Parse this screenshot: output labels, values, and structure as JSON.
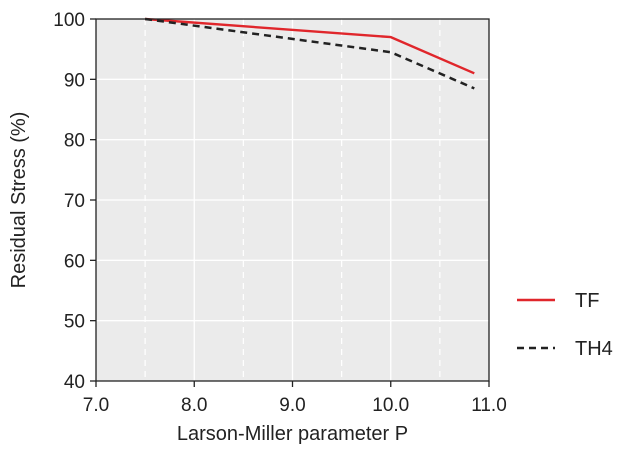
{
  "chart_data": {
    "type": "line",
    "title": "",
    "xlabel": "Larson-Miller parameter P",
    "ylabel": "Residual Stress (%)",
    "xlim": [
      7.0,
      11.0
    ],
    "ylim": [
      40,
      100
    ],
    "xticks": [
      "7.0",
      "8.0",
      "9.0",
      "10.0",
      "11.0"
    ],
    "yticks": [
      "40",
      "50",
      "60",
      "70",
      "80",
      "90",
      "100"
    ],
    "grid": true,
    "minor_grid": true,
    "legend_position": "right",
    "plot_background": "#ebebeb",
    "series": [
      {
        "name": "TF",
        "color": "#e0262b",
        "style": "solid",
        "x": [
          7.5,
          10.0,
          10.85
        ],
        "y": [
          100,
          97,
          91
        ]
      },
      {
        "name": "TH4",
        "color": "#222222",
        "style": "dashed",
        "x": [
          7.5,
          10.0,
          10.85
        ],
        "y": [
          100,
          94.5,
          88.5
        ]
      }
    ]
  }
}
